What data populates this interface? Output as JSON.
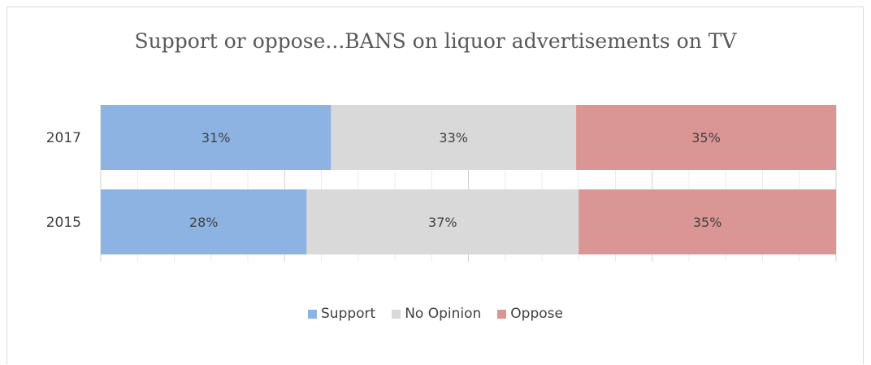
{
  "chart_data": {
    "type": "bar",
    "orientation": "horizontal",
    "stacked": true,
    "title": "Support or oppose...BANS on liquor advertisements on TV",
    "categories": [
      "2017",
      "2015"
    ],
    "series": [
      {
        "name": "Support",
        "values": [
          31,
          28
        ],
        "labels": [
          "31%",
          "28%"
        ],
        "color": "#8db3e2"
      },
      {
        "name": "No Opinion",
        "values": [
          33,
          37
        ],
        "labels": [
          "33%",
          "37%"
        ],
        "color": "#d9d9d9"
      },
      {
        "name": "Oppose",
        "values": [
          35,
          35
        ],
        "labels": [
          "35%",
          "35%"
        ],
        "color": "#da9694"
      }
    ],
    "legend_position": "bottom",
    "grid": true
  }
}
